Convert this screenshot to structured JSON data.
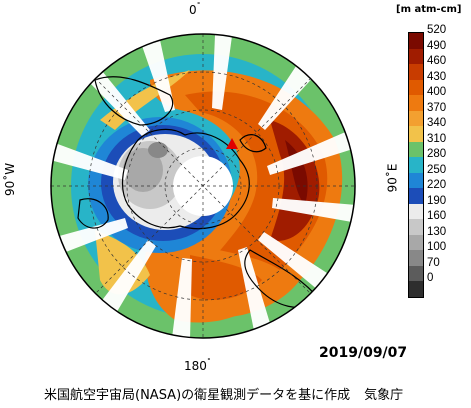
{
  "labels": {
    "top": "0",
    "bottom": "180",
    "left": "90˚W",
    "right": "90˚E",
    "degree_mark": "˚"
  },
  "date": "2019/09/07",
  "caption": {
    "text": "米国航空宇宙局(NASA)の衛星観測データを基に作成",
    "agency": "気象庁"
  },
  "legend": {
    "units": "[m atm-cm]",
    "levels": [
      520,
      490,
      460,
      430,
      400,
      370,
      340,
      310,
      280,
      250,
      220,
      190,
      160,
      130,
      100,
      70,
      0
    ],
    "colors": [
      "#7a0a00",
      "#a01c00",
      "#c83c00",
      "#e05a00",
      "#ee7a10",
      "#f3a030",
      "#f2c24a",
      "#6bc26a",
      "#28b4c8",
      "#1f86d6",
      "#1c4db8",
      "#ececec",
      "#c8c8c8",
      "#a8a8a8",
      "#888888",
      "#5c5c5c",
      "#2e2e2e"
    ]
  }
}
